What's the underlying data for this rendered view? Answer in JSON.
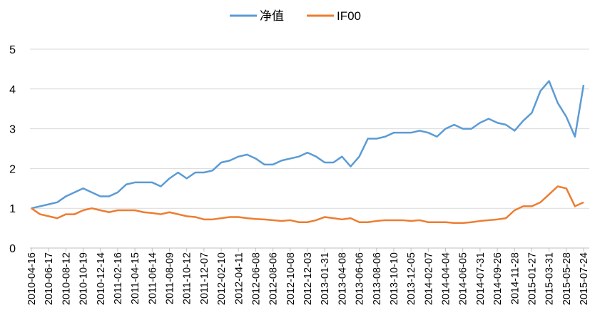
{
  "chart_data": {
    "type": "line",
    "categories": [
      "2010-04-16",
      null,
      "2010-06-17",
      null,
      "2010-08-12",
      null,
      "2010-10-19",
      null,
      "2010-12-14",
      null,
      "2011-02-16",
      null,
      "2011-04-15",
      null,
      "2011-06-14",
      null,
      "2011-08-09",
      null,
      "2011-10-12",
      null,
      "2011-12-07",
      null,
      "2012-02-10",
      null,
      "2012-04-11",
      null,
      "2012-06-08",
      null,
      "2012-08-06",
      null,
      "2012-10-08",
      null,
      "2012-12-03",
      null,
      "2013-01-31",
      null,
      "2013-04-08",
      null,
      "2013-06-06",
      null,
      "2013-08-06",
      null,
      "2013-10-10",
      null,
      "2013-12-05",
      null,
      "2014-02-07",
      null,
      "2014-04-04",
      null,
      "2014-06-05",
      null,
      "2014-07-31",
      null,
      "2014-09-26",
      null,
      "2014-11-28",
      null,
      "2015-01-27",
      null,
      "2015-03-31",
      null,
      "2015-05-28",
      null,
      "2015-07-24"
    ],
    "series": [
      {
        "name": "净值",
        "color": "#5b9bd5",
        "values": [
          1.0,
          1.05,
          1.1,
          1.15,
          1.3,
          1.4,
          1.5,
          1.4,
          1.3,
          1.3,
          1.4,
          1.6,
          1.65,
          1.65,
          1.65,
          1.55,
          1.75,
          1.9,
          1.75,
          1.9,
          1.9,
          1.95,
          2.15,
          2.2,
          2.3,
          2.35,
          2.25,
          2.1,
          2.1,
          2.2,
          2.25,
          2.3,
          2.4,
          2.3,
          2.15,
          2.15,
          2.3,
          2.05,
          2.3,
          2.75,
          2.75,
          2.8,
          2.9,
          2.9,
          2.9,
          2.95,
          2.9,
          2.8,
          3.0,
          3.1,
          3.0,
          3.0,
          3.15,
          3.25,
          3.15,
          3.1,
          2.95,
          3.2,
          3.4,
          3.95,
          4.2,
          3.65,
          3.3,
          2.8,
          4.1
        ]
      },
      {
        "name": "IF00",
        "color": "#ed7d31",
        "values": [
          1.0,
          0.85,
          0.8,
          0.75,
          0.85,
          0.85,
          0.95,
          1.0,
          0.95,
          0.9,
          0.95,
          0.95,
          0.95,
          0.9,
          0.88,
          0.85,
          0.9,
          0.85,
          0.8,
          0.78,
          0.72,
          0.72,
          0.75,
          0.78,
          0.78,
          0.75,
          0.73,
          0.72,
          0.7,
          0.68,
          0.7,
          0.65,
          0.65,
          0.7,
          0.78,
          0.75,
          0.72,
          0.75,
          0.65,
          0.65,
          0.68,
          0.7,
          0.7,
          0.7,
          0.68,
          0.7,
          0.65,
          0.65,
          0.65,
          0.63,
          0.63,
          0.65,
          0.68,
          0.7,
          0.72,
          0.75,
          0.95,
          1.05,
          1.05,
          1.15,
          1.35,
          1.55,
          1.5,
          1.05,
          1.15
        ]
      }
    ],
    "ylim": [
      0,
      5
    ],
    "yticks": [
      0,
      1,
      2,
      3,
      4,
      5
    ],
    "grid": true,
    "legend": "top"
  }
}
